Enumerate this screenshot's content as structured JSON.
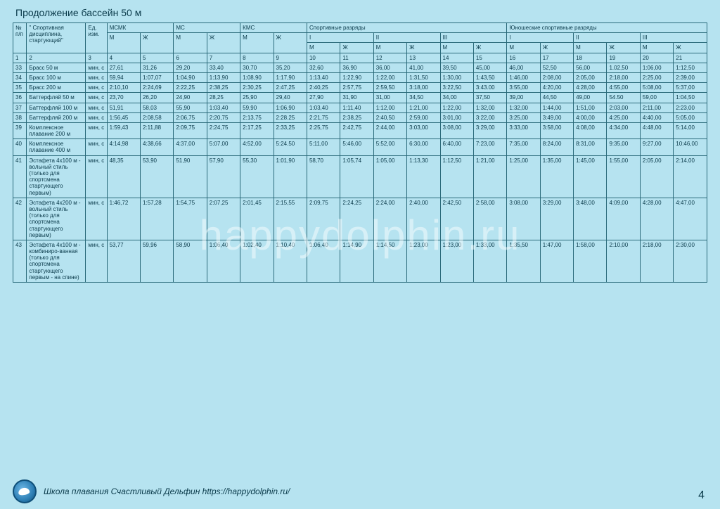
{
  "title": "Продолжение бассейн 50 м",
  "watermark": "happydolphin.ru",
  "footer_text": "Школа плавания Счастливый Дельфин    https://happydolphin.ru/",
  "page_number": "4",
  "header": {
    "num": "№ п/п",
    "disc": "\" Спортивная дисциплина, стартующий\"",
    "unit": "Ед. изм.",
    "g1": "МСМК",
    "g2": "МС",
    "g3": "КМС",
    "g4": "Спортивные разряды",
    "g5": "Юношеские спортивные разряды",
    "m": "М",
    "w": "Ж",
    "r1": "I",
    "r2": "II",
    "r3": "III"
  },
  "index": [
    "1",
    "2",
    "3",
    "4",
    "5",
    "6",
    "7",
    "8",
    "9",
    "10",
    "11",
    "12",
    "13",
    "14",
    "15",
    "16",
    "17",
    "18",
    "19",
    "20",
    "21"
  ],
  "rows": [
    {
      "n": "33",
      "d": "Брасс 50 м",
      "u": "мин, с",
      "v": [
        "27,61",
        "31,26",
        "29,20",
        "33,40",
        "30,70",
        "35,20",
        "32,60",
        "36,90",
        "36,00",
        "41,00",
        "39,50",
        "45,00",
        "46,00",
        "52,50",
        "56,00",
        "1.02,50",
        "1:06,00",
        "1:12,50"
      ]
    },
    {
      "n": "34",
      "d": "Брасс 100 м",
      "u": "мин, с",
      "v": [
        "59,94",
        "1:07,07",
        "1:04,90",
        "1:13,90",
        "1:08,90",
        "1:17,90",
        "1:13,40",
        "1:22,90",
        "1:22,00",
        "1:31,50",
        "1:30,00",
        "1:43,50",
        "1:46,00",
        "2:08,00",
        "2:05,00",
        "2:18,00",
        "2:25,00",
        "2:39,00"
      ]
    },
    {
      "n": "35",
      "d": "Брасс 200 м",
      "u": "мин, с",
      "v": [
        "2:10,10",
        "2:24,69",
        "2:22,25",
        "2:38,25",
        "2:30,25",
        "2:47,25",
        "2:40,25",
        "2:57,75",
        "2:59,50",
        "3:18,00",
        "3:22,50",
        "3:43.00",
        "3:55,00",
        "4:20,00",
        "4:28,00",
        "4:55,00",
        "5:08,00",
        "5:37,00"
      ]
    },
    {
      "n": "36",
      "d": "Баттерфляй 50 м",
      "u": "мин, с",
      "v": [
        "23,70",
        "26,20",
        "24,90",
        "28,25",
        "25,90",
        "29,40",
        "27,90",
        "31,90",
        "31,00",
        "34,50",
        "34,00",
        "37,50",
        "39,00",
        "44,50",
        "49,00",
        "54.50",
        "59,00",
        "1:04,50"
      ]
    },
    {
      "n": "37",
      "d": "Баттерфляй 100 м",
      "u": "мин, с",
      "v": [
        "51,91",
        "58,03",
        "55,90",
        "1:03,40",
        "59,90",
        "1:06,90",
        "1:03,40",
        "1:11,40",
        "1:12,00",
        "1:21,00",
        "1:22,00",
        "1:32,00",
        "1:32,00",
        "1:44,00",
        "1:51,00",
        "2:03,00",
        "2:11,00",
        "2:23,00"
      ]
    },
    {
      "n": "38",
      "d": "Баттерфляй 200 м",
      "u": "мин, с",
      "v": [
        "1:56,45",
        "2:08,58",
        "2:06,75",
        "2:20,75",
        "2:13,75",
        "2:28.25",
        "2:21,75",
        "2:38,25",
        "2:40,50",
        "2:59,00",
        "3:01,00",
        "3:22,00",
        "3:25,00",
        "3:49,00",
        "4:00,00",
        "4:25,00",
        "4:40,00",
        "5:05,00"
      ]
    },
    {
      "n": "39",
      "d": "Комплексное плавание 200 м",
      "u": "мин, с",
      "v": [
        "1:59,43",
        "2:11,88",
        "2:09,75",
        "2:24,75",
        "2:17,25",
        "2:33,25",
        "2:25,75",
        "2:42,75",
        "2:44,00",
        "3:03,00",
        "3:08,00",
        "3:29,00",
        "3:33,00",
        "3:58,00",
        "4:08,00",
        "4:34,00",
        "4:48,00",
        "5:14,00"
      ]
    },
    {
      "n": "40",
      "d": "Комплексное плавание 400 м",
      "u": "мин, с",
      "v": [
        "4:14,98",
        "4:38,66",
        "4:37,00",
        "5:07,00",
        "4:52,00",
        "5:24.50",
        "5:11,00",
        "5:46,00",
        "5:52,00",
        "6:30,00",
        "6:40,00",
        "7:23,00",
        "7:35,00",
        "8:24,00",
        "8:31,00",
        "9:35,00",
        "9:27,00",
        "10:46,00"
      ]
    },
    {
      "n": "41",
      "d": "Эстафета 4х100 м - вольный стиль (только для спортсмена стартующего первым)",
      "u": "мин, с",
      "v": [
        "48,35",
        "53,90",
        "51,90",
        "57,90",
        "55,30",
        "1:01,90",
        "58,70",
        "1:05,74",
        "1:05,00",
        "1:13,30",
        "1:12,50",
        "1:21,00",
        "1:25,00",
        "1:35,00",
        "1:45,00",
        "1:55,00",
        "2:05,00",
        "2:14,00"
      ]
    },
    {
      "n": "42",
      "d": "Эстафета 4х200 м - вольный стиль (только для спортсмена стартующего первым)",
      "u": "мин, с",
      "v": [
        "1:46,72",
        "1:57,28",
        "1:54,75",
        "2:07,25",
        "2:01,45",
        "2:15,55",
        "2:09,75",
        "2:24,25",
        "2:24,00",
        "2:40,00",
        "2:42,50",
        "2:58,00",
        "3:08,00",
        "3:29,00",
        "3:48,00",
        "4:09,00",
        "4:28,00",
        "4:47,00"
      ]
    },
    {
      "n": "43",
      "d": "Эстафета 4х100 м - комбиниро-ванная (только для спортсмена стартующего первым - на спине)",
      "u": "мин, с",
      "v": [
        "53,77",
        "59,96",
        "58,90",
        "1:06,40",
        "1:02,40",
        "1:10,40",
        "1:06,40",
        "1:14,90",
        "1:14,50",
        "1:23,00",
        "1:23,00",
        "1:33,00",
        "1:35,50",
        "1:47,00",
        "1:58,00",
        "2:10,00",
        "2:18,00",
        "2:30,00"
      ]
    }
  ]
}
